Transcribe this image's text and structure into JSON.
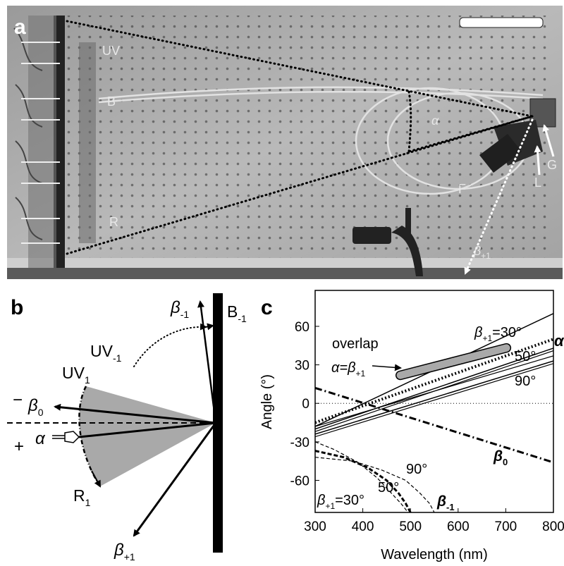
{
  "panel_a": {
    "label": "a",
    "labels": {
      "uv": "UV",
      "b": "B",
      "r": "R",
      "alpha": "α",
      "f": "F",
      "l": "L",
      "g": "G",
      "beta_plus1": "β",
      "beta_plus1_sub": "+1"
    }
  },
  "panel_b": {
    "label": "b",
    "labels": {
      "beta_minus1": "β",
      "beta_minus1_sub": "-1",
      "b_minus1": "B",
      "b_minus1_sub": "-1",
      "uv_minus1": "UV",
      "uv_minus1_sub": "-1",
      "uv_1": "UV",
      "uv_1_sub": "1",
      "minus": "−",
      "beta_0": "β",
      "beta_0_sub": "0",
      "plus": "+",
      "alpha": "α",
      "r_1": "R",
      "r_1_sub": "1",
      "beta_plus1": "β",
      "beta_plus1_sub": "+1"
    }
  },
  "panel_c": {
    "label": "c",
    "annotations": {
      "overlap": "overlap",
      "alpha_eq": "α=β",
      "alpha_eq_sub": "+1",
      "beta_p1_30": "β",
      "beta_p1_30_sub": "+1",
      "beta_p1_30_val": "=30°",
      "val_50_top": "50°",
      "val_90_top": "90°",
      "alpha_right": "α",
      "beta_0": "β",
      "beta_0_sub": "0",
      "val_90_bottom": "90°",
      "val_50_bottom": "50°",
      "beta_p1_30_bottom": "β",
      "beta_p1_30_bottom_sub": "+1",
      "beta_p1_30_bottom_val": "=30°",
      "beta_minus1": "β",
      "beta_minus1_sub": "-1"
    }
  },
  "chart_data": {
    "type": "line",
    "xlabel": "Wavelength (nm)",
    "ylabel": "Angle (°)",
    "xlim": [
      300,
      800
    ],
    "ylim": [
      -85,
      88
    ],
    "xticks": [
      300,
      400,
      500,
      600,
      700,
      800
    ],
    "yticks": [
      60,
      30,
      0,
      -30,
      -60
    ],
    "series": [
      {
        "name": "β+1=30°",
        "style": "solid",
        "x": [
          300,
          800
        ],
        "y": [
          -18,
          70
        ]
      },
      {
        "name": "50°",
        "style": "solid",
        "x": [
          300,
          800
        ],
        "y": [
          -20,
          43
        ]
      },
      {
        "name": "90°",
        "style": "solid",
        "x": [
          300,
          800
        ],
        "y": [
          -24,
          33
        ]
      },
      {
        "name": "α",
        "style": "dotted",
        "x": [
          300,
          800
        ],
        "y": [
          -15,
          50
        ]
      },
      {
        "name": "β0",
        "style": "dash-dot",
        "x": [
          300,
          800
        ],
        "y": [
          12,
          -46
        ]
      },
      {
        "name": "β-1 (30°)",
        "style": "dashed",
        "x": [
          300,
          340,
          390,
          430,
          460,
          480,
          495
        ],
        "y": [
          -30,
          -36,
          -46,
          -58,
          -70,
          -78,
          -85
        ]
      },
      {
        "name": "β-1 (50°)",
        "style": "dashed-bold",
        "x": [
          300,
          360,
          410,
          450,
          475,
          490,
          500
        ],
        "y": [
          -37,
          -42,
          -50,
          -60,
          -70,
          -78,
          -85
        ]
      },
      {
        "name": "β-1 (90°)",
        "style": "dashed",
        "x": [
          300,
          380,
          440,
          490,
          520,
          540,
          550
        ],
        "y": [
          -42,
          -45,
          -52,
          -60,
          -70,
          -78,
          -85
        ]
      }
    ],
    "overlap_region": {
      "x": [
        470,
        710
      ],
      "y": [
        21,
        44
      ]
    }
  }
}
